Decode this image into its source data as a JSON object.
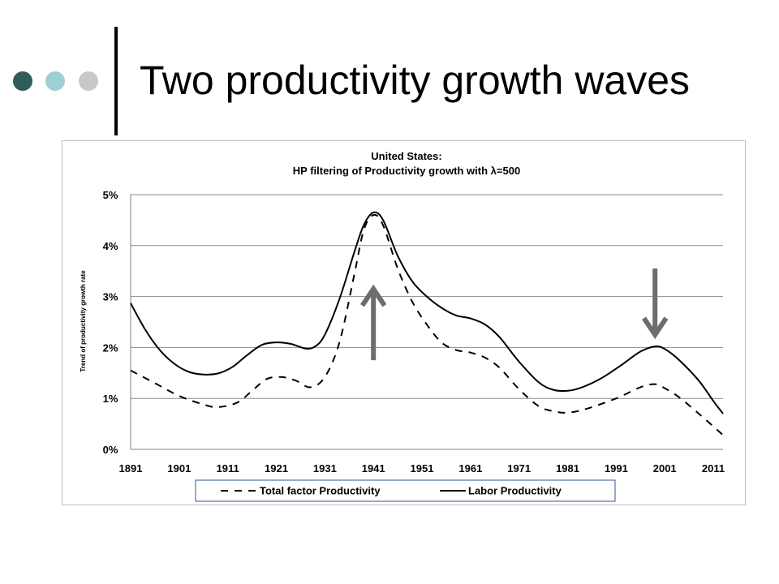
{
  "slide": {
    "title": "Two productivity growth waves",
    "dot_colors": [
      "#2e5d5b",
      "#9ecfd6",
      "#c8c8c8"
    ]
  },
  "chart_data": {
    "type": "line",
    "title_lines": [
      "United States:",
      "HP filtering of Productivity growth with λ=500"
    ],
    "ylabel": "Trend of productivity growth rate",
    "xlabel": "",
    "xlim": [
      1891,
      2013
    ],
    "ylim": [
      0,
      5
    ],
    "x_ticks": [
      "1891",
      "1901",
      "1911",
      "1921",
      "1931",
      "1941",
      "1951",
      "1961",
      "1971",
      "1981",
      "1991",
      "2001",
      "2011"
    ],
    "y_ticks": [
      "0%",
      "1%",
      "2%",
      "3%",
      "4%",
      "5%"
    ],
    "grid": "horizontal",
    "legend_position": "bottom",
    "series": [
      {
        "name": "Total factor Productivity",
        "style": "dashed",
        "color": "#000000",
        "points": [
          [
            1891,
            1.55
          ],
          [
            1896,
            1.3
          ],
          [
            1901,
            1.05
          ],
          [
            1906,
            0.88
          ],
          [
            1909,
            0.83
          ],
          [
            1913,
            0.92
          ],
          [
            1916,
            1.15
          ],
          [
            1919,
            1.38
          ],
          [
            1922,
            1.42
          ],
          [
            1925,
            1.35
          ],
          [
            1928,
            1.22
          ],
          [
            1931,
            1.42
          ],
          [
            1934,
            2.1
          ],
          [
            1937,
            3.4
          ],
          [
            1939,
            4.3
          ],
          [
            1941,
            4.6
          ],
          [
            1943,
            4.4
          ],
          [
            1946,
            3.55
          ],
          [
            1949,
            2.9
          ],
          [
            1952,
            2.45
          ],
          [
            1955,
            2.1
          ],
          [
            1958,
            1.95
          ],
          [
            1961,
            1.9
          ],
          [
            1964,
            1.8
          ],
          [
            1967,
            1.6
          ],
          [
            1971,
            1.18
          ],
          [
            1975,
            0.85
          ],
          [
            1978,
            0.75
          ],
          [
            1981,
            0.72
          ],
          [
            1985,
            0.8
          ],
          [
            1991,
            1.0
          ],
          [
            1996,
            1.22
          ],
          [
            1999,
            1.28
          ],
          [
            2001,
            1.2
          ],
          [
            2004,
            1.02
          ],
          [
            2008,
            0.7
          ],
          [
            2011,
            0.45
          ],
          [
            2013,
            0.28
          ]
        ]
      },
      {
        "name": "Labor Productivity",
        "style": "solid",
        "color": "#000000",
        "points": [
          [
            1891,
            2.87
          ],
          [
            1894,
            2.35
          ],
          [
            1897,
            1.95
          ],
          [
            1900,
            1.68
          ],
          [
            1903,
            1.52
          ],
          [
            1906,
            1.47
          ],
          [
            1909,
            1.49
          ],
          [
            1912,
            1.62
          ],
          [
            1915,
            1.85
          ],
          [
            1918,
            2.05
          ],
          [
            1921,
            2.1
          ],
          [
            1924,
            2.07
          ],
          [
            1927,
            1.98
          ],
          [
            1929,
            2.02
          ],
          [
            1931,
            2.25
          ],
          [
            1934,
            2.95
          ],
          [
            1937,
            3.85
          ],
          [
            1939,
            4.4
          ],
          [
            1941,
            4.65
          ],
          [
            1943,
            4.5
          ],
          [
            1946,
            3.8
          ],
          [
            1949,
            3.3
          ],
          [
            1952,
            3.0
          ],
          [
            1955,
            2.78
          ],
          [
            1958,
            2.63
          ],
          [
            1961,
            2.57
          ],
          [
            1964,
            2.45
          ],
          [
            1967,
            2.2
          ],
          [
            1971,
            1.72
          ],
          [
            1975,
            1.32
          ],
          [
            1978,
            1.17
          ],
          [
            1981,
            1.15
          ],
          [
            1984,
            1.22
          ],
          [
            1988,
            1.4
          ],
          [
            1992,
            1.65
          ],
          [
            1996,
            1.92
          ],
          [
            1999,
            2.02
          ],
          [
            2001,
            1.97
          ],
          [
            2004,
            1.75
          ],
          [
            2008,
            1.35
          ],
          [
            2011,
            0.95
          ],
          [
            2013,
            0.7
          ]
        ]
      }
    ],
    "annotations": [
      {
        "type": "arrow-up",
        "x": 1941,
        "y_from": 1.75,
        "y_to": 3.15,
        "color": "#6d6d6d"
      },
      {
        "type": "arrow-down",
        "x": 1999,
        "y_from": 3.55,
        "y_to": 2.25,
        "color": "#6d6d6d"
      }
    ]
  }
}
